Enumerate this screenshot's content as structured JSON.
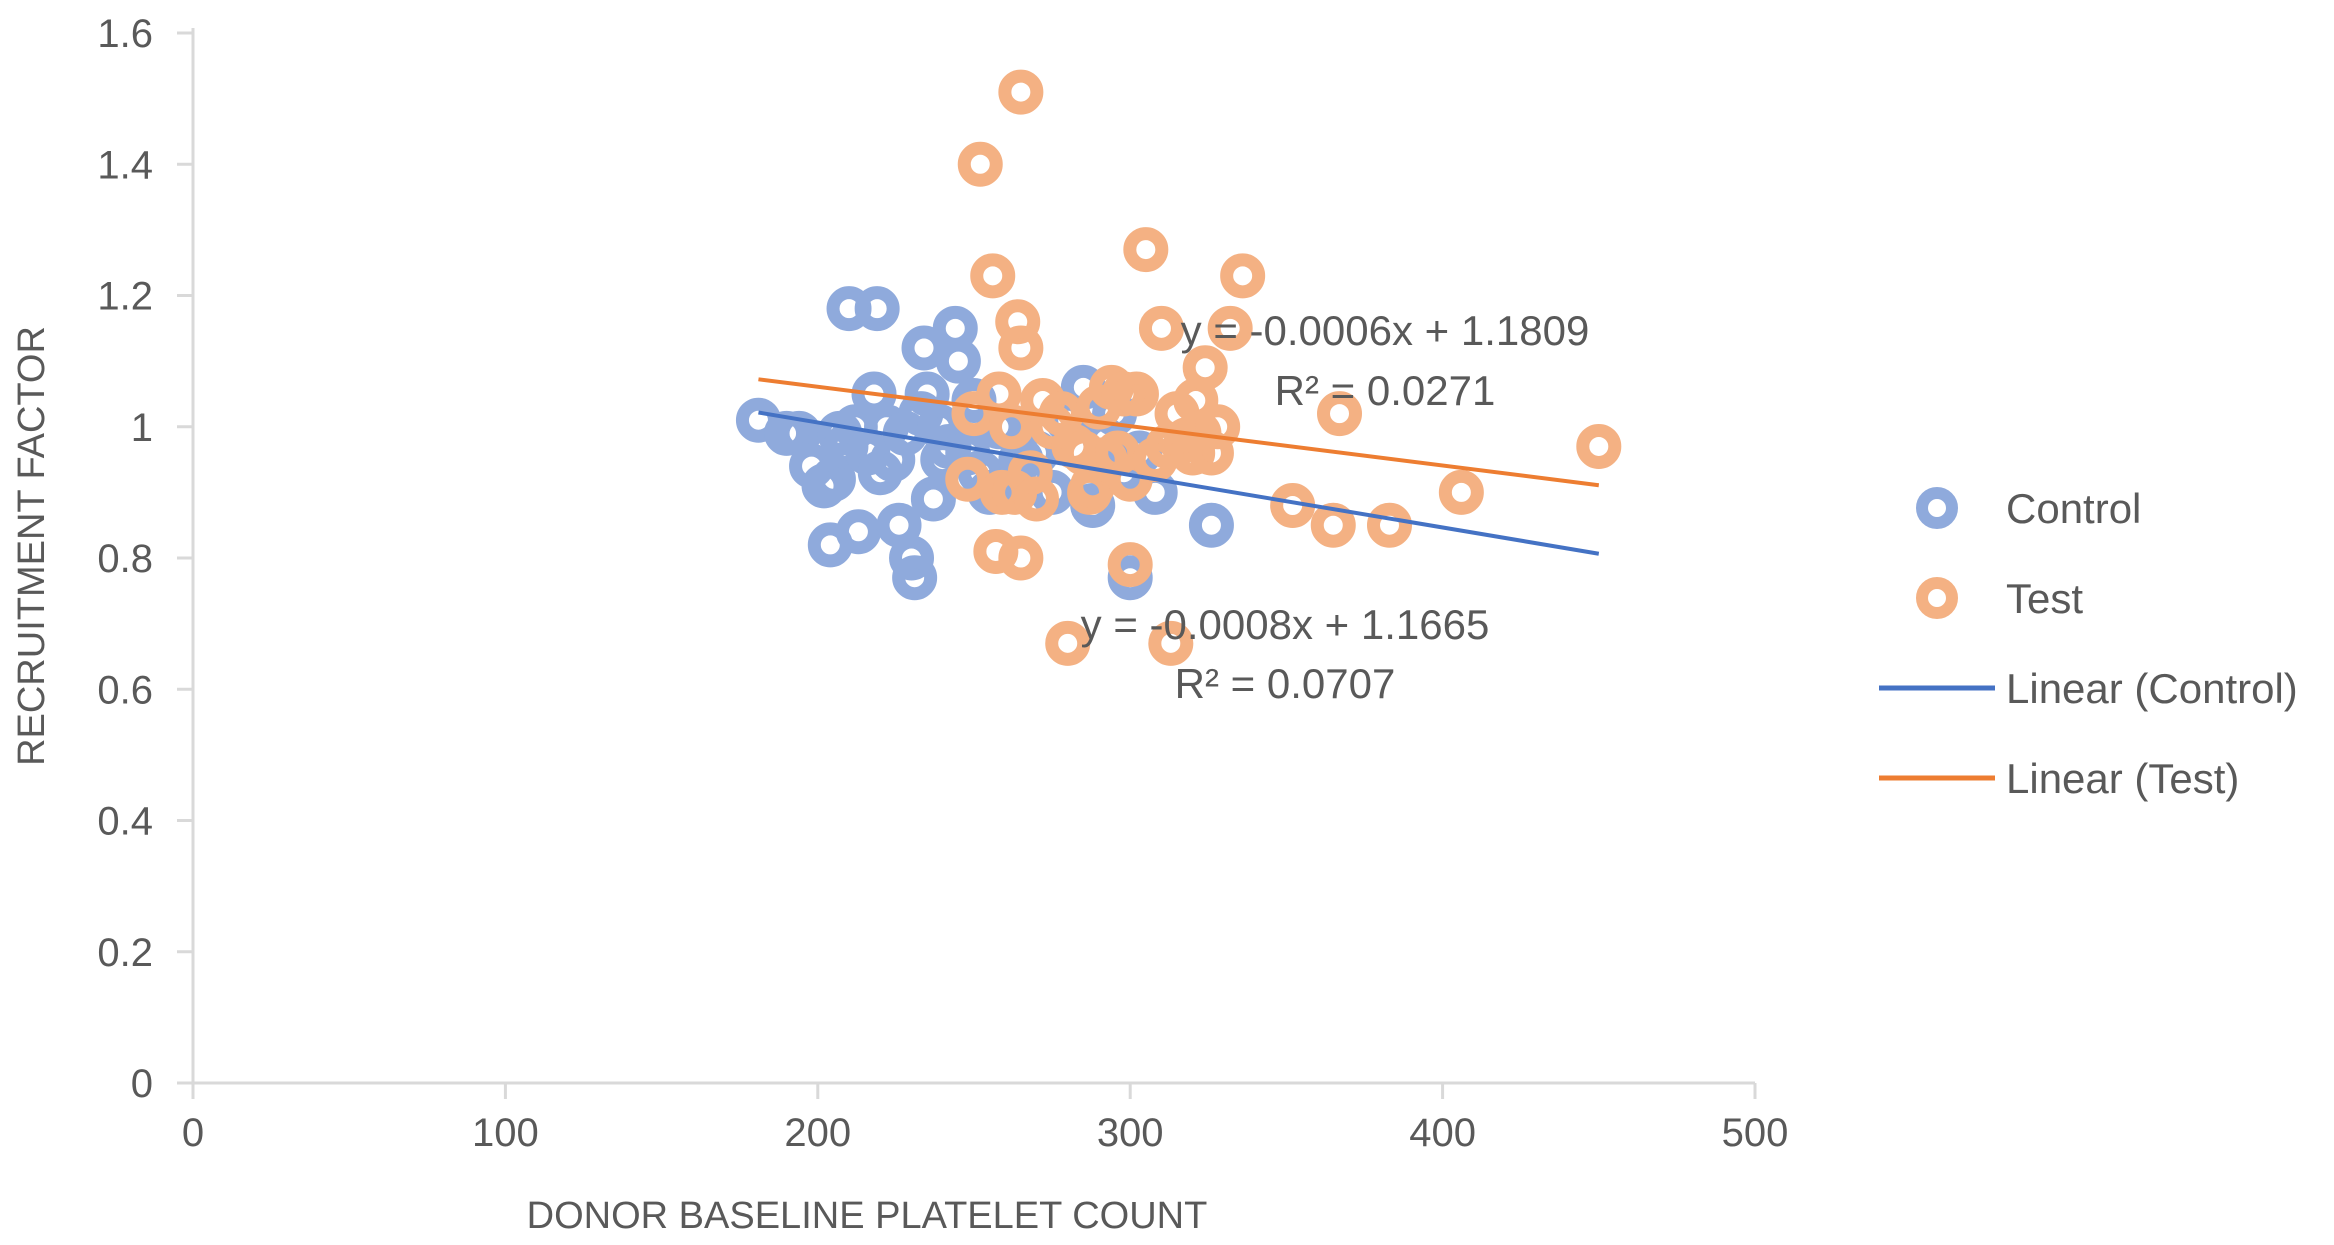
{
  "chart_data": {
    "type": "scatter",
    "title": "",
    "xlabel": "DONOR BASELINE PLATELET COUNT",
    "ylabel": "RECRUITMENT FACTOR",
    "xlim": [
      0,
      500
    ],
    "ylim": [
      0,
      1.6
    ],
    "x_ticks": [
      0,
      100,
      200,
      300,
      400,
      500
    ],
    "x_tick_labels": [
      "0",
      "100",
      "200",
      "300",
      "400",
      "500"
    ],
    "y_ticks": [
      0,
      0.2,
      0.4,
      0.6,
      0.8,
      1.0,
      1.2,
      1.4,
      1.6
    ],
    "y_tick_labels": [
      "0",
      "0.2",
      "0.4",
      "0.6",
      "0.8",
      "1",
      "1.2",
      "1.4",
      "1.6"
    ],
    "grid": false,
    "legend_position": "right",
    "colors": {
      "control_marker": "#8faadc",
      "test_marker": "#f4b183",
      "control_line": "#4472c4",
      "test_line": "#ed7d31",
      "axis": "#d9d9d9",
      "text": "#595959"
    },
    "series": [
      {
        "name": "Control",
        "kind": "scatter",
        "color": "#8faadc",
        "points": [
          [
            181,
            1.01
          ],
          [
            190,
            0.99
          ],
          [
            194,
            0.99
          ],
          [
            198,
            0.94
          ],
          [
            202,
            0.91
          ],
          [
            204,
            0.82
          ],
          [
            205,
            0.92
          ],
          [
            207,
            0.99
          ],
          [
            209,
            0.97
          ],
          [
            210,
            1.18
          ],
          [
            212,
            1.0
          ],
          [
            213,
            0.84
          ],
          [
            216,
            0.96
          ],
          [
            218,
            1.05
          ],
          [
            219,
            1.18
          ],
          [
            220,
            0.93
          ],
          [
            222,
            1.0
          ],
          [
            224,
            0.95
          ],
          [
            226,
            0.85
          ],
          [
            228,
            0.99
          ],
          [
            230,
            0.8
          ],
          [
            231,
            0.77
          ],
          [
            233,
            1.02
          ],
          [
            234,
            1.12
          ],
          [
            235,
            1.05
          ],
          [
            237,
            0.89
          ],
          [
            239,
            1.0
          ],
          [
            240,
            0.95
          ],
          [
            242,
            0.97
          ],
          [
            244,
            1.15
          ],
          [
            245,
            1.1
          ],
          [
            248,
            0.96
          ],
          [
            250,
            1.04
          ],
          [
            252,
            0.93
          ],
          [
            255,
            0.9
          ],
          [
            258,
            1.0
          ],
          [
            262,
            0.92
          ],
          [
            265,
            0.95
          ],
          [
            270,
            0.96
          ],
          [
            275,
            0.9
          ],
          [
            280,
            1.01
          ],
          [
            285,
            1.06
          ],
          [
            288,
            0.88
          ],
          [
            292,
            0.98
          ],
          [
            295,
            1.02
          ],
          [
            298,
            0.93
          ],
          [
            300,
            0.77
          ],
          [
            303,
            0.96
          ],
          [
            308,
            0.9
          ],
          [
            326,
            0.85
          ]
        ]
      },
      {
        "name": "Test",
        "kind": "scatter",
        "color": "#f4b183",
        "points": [
          [
            248,
            0.92
          ],
          [
            250,
            1.02
          ],
          [
            252,
            1.4
          ],
          [
            256,
            1.23
          ],
          [
            257,
            0.81
          ],
          [
            258,
            1.05
          ],
          [
            259,
            0.9
          ],
          [
            262,
            1.0
          ],
          [
            263,
            0.9
          ],
          [
            264,
            1.16
          ],
          [
            265,
            1.51
          ],
          [
            265,
            1.12
          ],
          [
            265,
            0.8
          ],
          [
            268,
            0.93
          ],
          [
            270,
            0.89
          ],
          [
            272,
            1.04
          ],
          [
            275,
            1.0
          ],
          [
            278,
            1.02
          ],
          [
            280,
            0.67
          ],
          [
            282,
            0.97
          ],
          [
            285,
            0.96
          ],
          [
            287,
            0.9
          ],
          [
            288,
            0.91
          ],
          [
            290,
            1.03
          ],
          [
            292,
            0.95
          ],
          [
            294,
            1.06
          ],
          [
            296,
            0.96
          ],
          [
            298,
            1.05
          ],
          [
            300,
            0.79
          ],
          [
            300,
            0.92
          ],
          [
            302,
            1.05
          ],
          [
            305,
            1.27
          ],
          [
            308,
            0.95
          ],
          [
            310,
            1.15
          ],
          [
            312,
            0.97
          ],
          [
            313,
            0.67
          ],
          [
            315,
            1.02
          ],
          [
            318,
            0.98
          ],
          [
            320,
            0.96
          ],
          [
            321,
            1.04
          ],
          [
            322,
            0.99
          ],
          [
            324,
            1.09
          ],
          [
            326,
            0.96
          ],
          [
            328,
            1.0
          ],
          [
            332,
            1.15
          ],
          [
            336,
            1.23
          ],
          [
            352,
            0.88
          ],
          [
            365,
            0.85
          ],
          [
            367,
            1.02
          ],
          [
            383,
            0.85
          ],
          [
            406,
            0.9
          ],
          [
            450,
            0.97
          ]
        ]
      },
      {
        "name": "Linear (Control)",
        "kind": "trendline",
        "color": "#4472c4",
        "slope": -0.0008,
        "intercept": 1.1665,
        "x_range": [
          181,
          450
        ],
        "equation": "y = -0.0008x + 1.1665",
        "r_squared": "R² = 0.0707"
      },
      {
        "name": "Linear (Test)",
        "kind": "trendline",
        "color": "#ed7d31",
        "slope": -0.0006,
        "intercept": 1.1809,
        "x_range": [
          181,
          450
        ],
        "equation": "y = -0.0006x + 1.1809",
        "r_squared": "R² = 0.0271"
      }
    ]
  }
}
